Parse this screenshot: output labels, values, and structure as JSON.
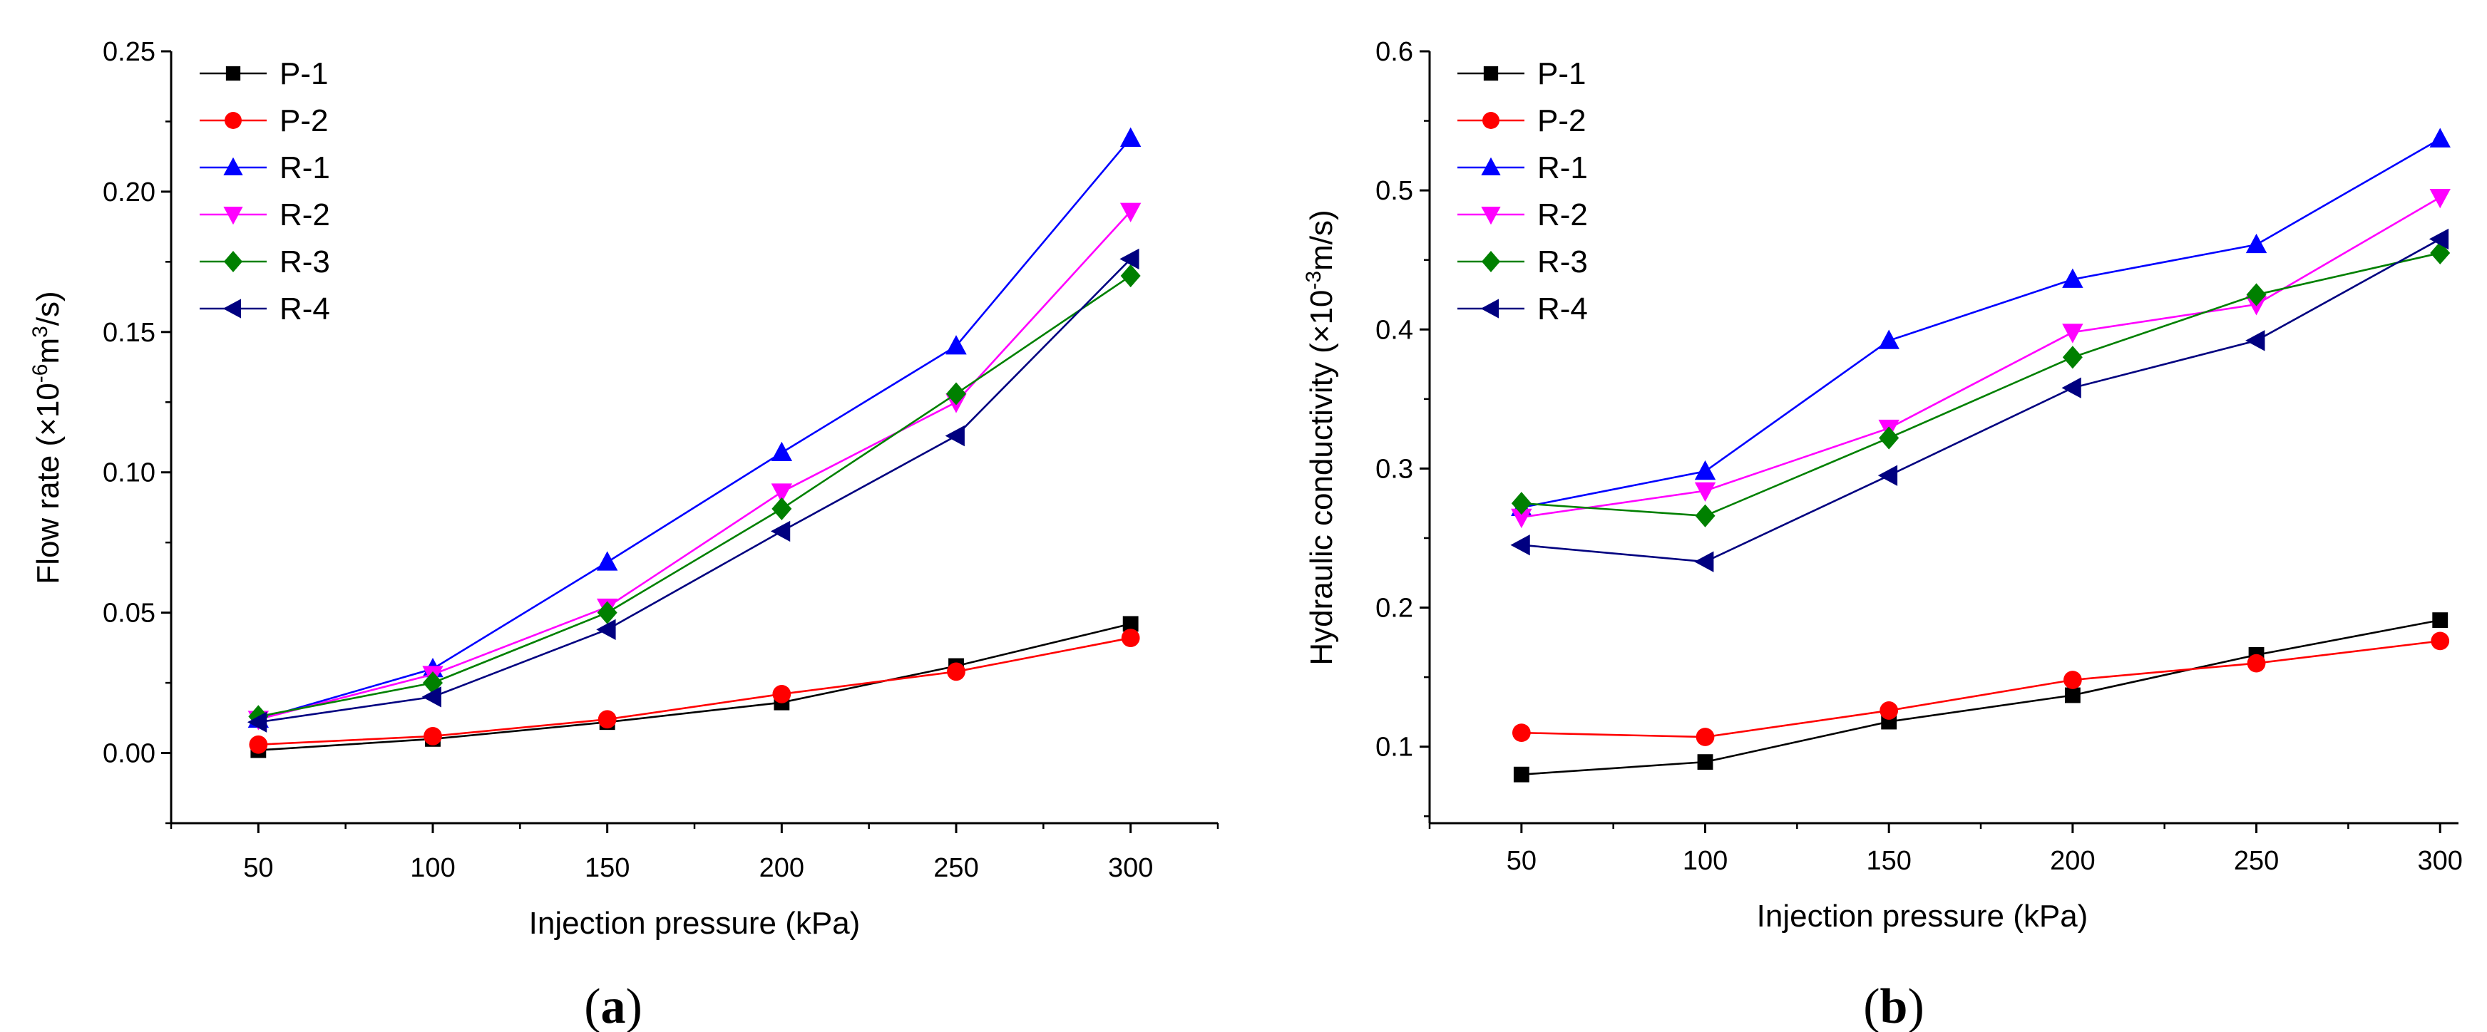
{
  "chart_data": [
    {
      "type": "line",
      "panel_caption": {
        "open": "(",
        "letter": "a",
        "close": ")"
      },
      "xlabel": "Injection pressure (kPa)",
      "ylabel": {
        "base": "Flow rate (×10",
        "sup1": "-6",
        "mid": "m",
        "sup2": "3",
        "end": "/s)"
      },
      "x": [
        50,
        100,
        150,
        200,
        250,
        300
      ],
      "xlim": [
        25,
        325
      ],
      "ylim": [
        -0.025,
        0.25
      ],
      "xticks": [
        "50",
        "100",
        "150",
        "200",
        "250",
        "300"
      ],
      "yticks": [
        "0.00",
        "0.05",
        "0.10",
        "0.15",
        "0.20",
        "0.25"
      ],
      "legend_position": "top-left",
      "grid": false,
      "series": [
        {
          "name": "P-1",
          "color": "#000000",
          "marker": "square",
          "values": [
            0.001,
            0.005,
            0.011,
            0.018,
            0.031,
            0.046
          ]
        },
        {
          "name": "P-2",
          "color": "#ff0000",
          "marker": "circle",
          "values": [
            0.003,
            0.006,
            0.012,
            0.021,
            0.029,
            0.041
          ]
        },
        {
          "name": "R-1",
          "color": "#0000ff",
          "marker": "triangle-up",
          "values": [
            0.012,
            0.03,
            0.068,
            0.107,
            0.145,
            0.219
          ]
        },
        {
          "name": "R-2",
          "color": "#ff00ff",
          "marker": "triangle-down",
          "values": [
            0.012,
            0.028,
            0.052,
            0.093,
            0.125,
            0.193
          ]
        },
        {
          "name": "R-3",
          "color": "#008000",
          "marker": "diamond",
          "values": [
            0.013,
            0.025,
            0.05,
            0.087,
            0.128,
            0.17
          ]
        },
        {
          "name": "R-4",
          "color": "#000080",
          "marker": "triangle-left",
          "values": [
            0.011,
            0.02,
            0.044,
            0.079,
            0.113,
            0.176
          ]
        }
      ]
    },
    {
      "type": "line",
      "panel_caption": {
        "open": "(",
        "letter": "b",
        "close": ")"
      },
      "xlabel": "Injection pressure (kPa)",
      "ylabel": {
        "base": "Hydraulic conductivity (×10",
        "sup1": "-3",
        "mid": "m/s)",
        "sup2": "",
        "end": ""
      },
      "x": [
        50,
        100,
        150,
        200,
        250,
        300
      ],
      "xlim": [
        25,
        305
      ],
      "ylim": [
        0.045,
        0.6
      ],
      "xticks": [
        "50",
        "100",
        "150",
        "200",
        "250",
        "300"
      ],
      "yticks": [
        "0.1",
        "0.2",
        "0.3",
        "0.4",
        "0.5",
        "0.6"
      ],
      "legend_position": "top-left",
      "grid": false,
      "series": [
        {
          "name": "P-1",
          "color": "#000000",
          "marker": "square",
          "values": [
            0.08,
            0.089,
            0.118,
            0.137,
            0.166,
            0.191
          ]
        },
        {
          "name": "P-2",
          "color": "#ff0000",
          "marker": "circle",
          "values": [
            0.11,
            0.107,
            0.126,
            0.148,
            0.16,
            0.176
          ]
        },
        {
          "name": "R-1",
          "color": "#0000ff",
          "marker": "triangle-up",
          "values": [
            0.272,
            0.298,
            0.392,
            0.436,
            0.461,
            0.537
          ]
        },
        {
          "name": "R-2",
          "color": "#ff00ff",
          "marker": "triangle-down",
          "values": [
            0.265,
            0.284,
            0.329,
            0.398,
            0.418,
            0.495
          ]
        },
        {
          "name": "R-3",
          "color": "#008000",
          "marker": "diamond",
          "values": [
            0.275,
            0.266,
            0.322,
            0.38,
            0.425,
            0.455
          ]
        },
        {
          "name": "R-4",
          "color": "#000080",
          "marker": "triangle-left",
          "values": [
            0.245,
            0.233,
            0.295,
            0.358,
            0.392,
            0.465
          ]
        }
      ]
    }
  ]
}
